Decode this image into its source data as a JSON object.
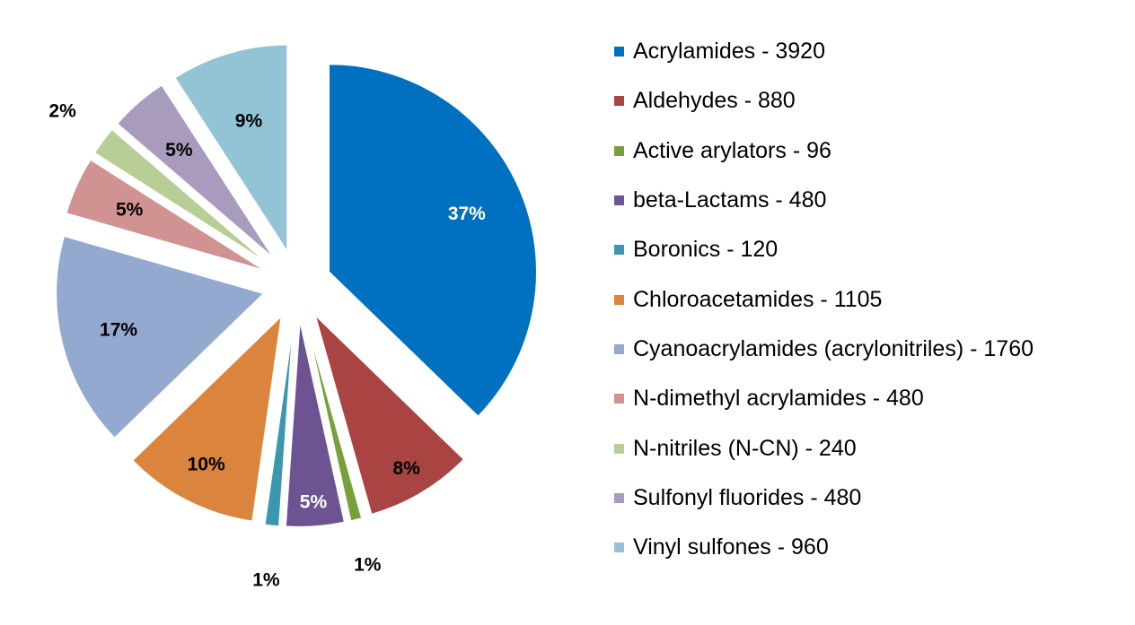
{
  "chart_data": {
    "type": "pie",
    "title": "",
    "slices": [
      {
        "legend": "Acrylamides - 3920",
        "value": 3920,
        "pct_label": "37%",
        "color": "#0070C0",
        "label_color": "#ffffff"
      },
      {
        "legend": "Aldehydes - 880",
        "value": 880,
        "pct_label": "8%",
        "color": "#A94442",
        "label_color": "#000000"
      },
      {
        "legend": "Active arylators - 96",
        "value": 96,
        "pct_label": "1%",
        "color": "#77A03A",
        "label_color": "#000000"
      },
      {
        "legend": "beta-Lactams - 480",
        "value": 480,
        "pct_label": "5%",
        "color": "#6E5393",
        "label_color": "#ffffff"
      },
      {
        "legend": "Boronics - 120",
        "value": 120,
        "pct_label": "1%",
        "color": "#3A97AD",
        "label_color": "#000000"
      },
      {
        "legend": "Chloroacetamides - 1105",
        "value": 1105,
        "pct_label": "10%",
        "color": "#DB843D",
        "label_color": "#000000"
      },
      {
        "legend": "Cyanoacrylamides (acrylonitriles) - 1760",
        "value": 1760,
        "pct_label": "17%",
        "color": "#93A9CF",
        "label_color": "#000000"
      },
      {
        "legend": "N-dimethyl acrylamides - 480",
        "value": 480,
        "pct_label": "5%",
        "color": "#D19392",
        "label_color": "#000000"
      },
      {
        "legend": "N-nitriles (N-CN) - 240",
        "value": 240,
        "pct_label": "2%",
        "color": "#B9CD96",
        "label_color": "#000000"
      },
      {
        "legend": "Sulfonyl fluorides - 480",
        "value": 480,
        "pct_label": "5%",
        "color": "#A99BBD",
        "label_color": "#000000"
      },
      {
        "legend": "Vinyl sulfones - 960",
        "value": 960,
        "pct_label": "9%",
        "color": "#92C4D6",
        "label_color": "#000000"
      }
    ],
    "legend_position": "right",
    "exploded": true
  }
}
